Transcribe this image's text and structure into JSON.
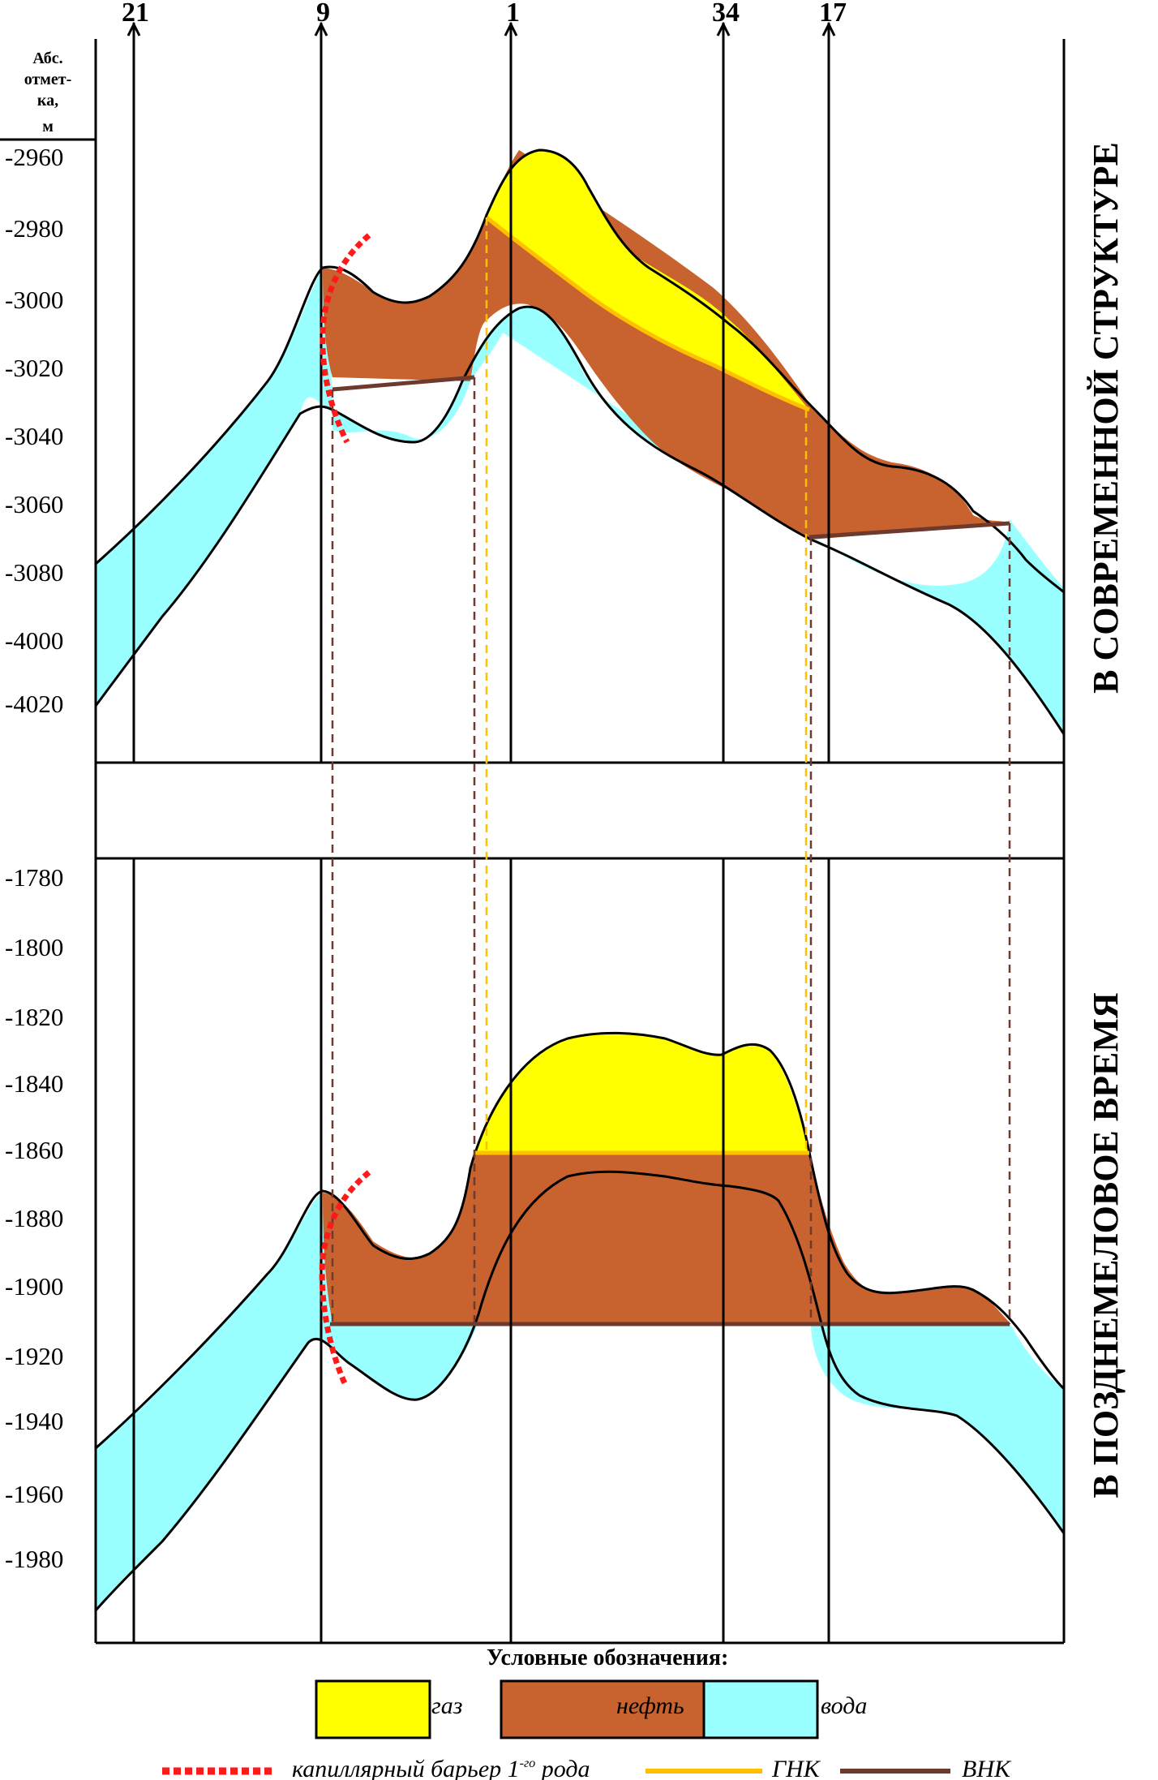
{
  "axis_header": {
    "line1": "Абс.",
    "line2": "отмет-",
    "line3": "ка,",
    "line4": "м"
  },
  "wells": [
    "21",
    "9",
    "1",
    "34",
    "17"
  ],
  "upper_panel": {
    "title": "В СОВРЕМЕННОЙ СТРУКТУРЕ",
    "ticks": [
      "-2960",
      "-2980",
      "-3000",
      "-3020",
      "-3040",
      "-3060",
      "-3080",
      "-4000",
      "-4020"
    ]
  },
  "lower_panel": {
    "title": "В ПОЗДНЕМЕЛОВОЕ ВРЕМЯ",
    "ticks": [
      "-1780",
      "-1800",
      "-1820",
      "-1840",
      "-1860",
      "-1880",
      "-1900",
      "-1920",
      "-1940",
      "-1960",
      "-1980"
    ]
  },
  "legend": {
    "title": "Условные обозначения:",
    "gas": "газ",
    "oil": "нефть",
    "water": "вода",
    "barrier_main": "капиллярный барьер 1",
    "barrier_sup": "-го",
    "barrier_end": " рода",
    "gnk": "ГНК",
    "vnk": "ВНК"
  },
  "colors": {
    "gas": "#ffff00",
    "oil": "#c8622e",
    "water": "#99ffff",
    "gnk_line": "#ffc000",
    "vnk_line": "#6e3a2e",
    "barrier": "#ff1a1a"
  }
}
